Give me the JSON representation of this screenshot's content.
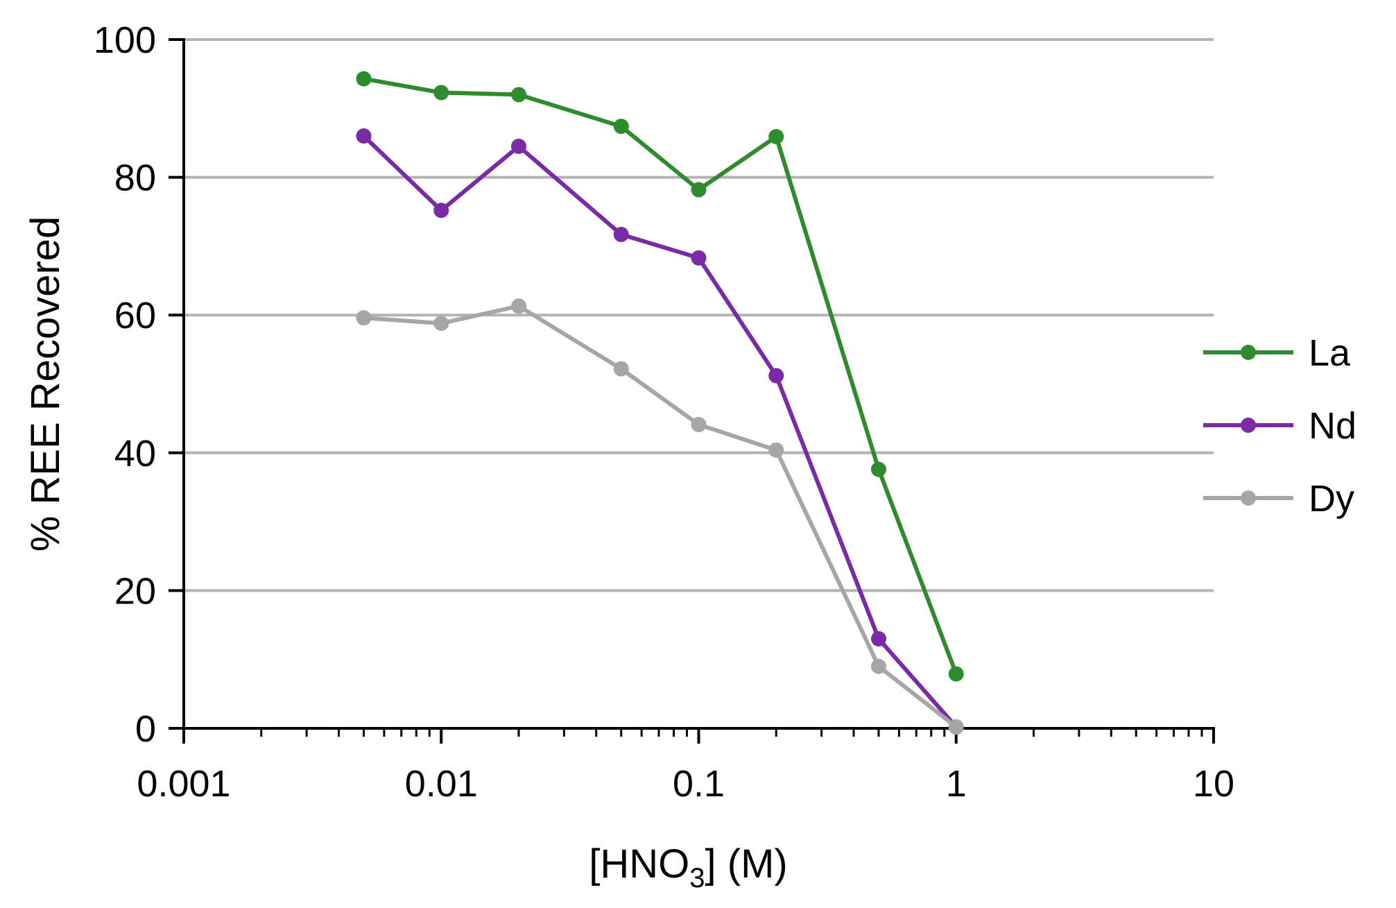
{
  "chart_data": {
    "type": "line",
    "title": "",
    "xlabel": "[HNO3] (M)",
    "xlabel_parts": {
      "prefix": "[HNO",
      "subscript": "3",
      "suffix": "] (M)"
    },
    "ylabel": "% REE Recovered",
    "x_scale": "log",
    "xlim": [
      0.001,
      10
    ],
    "ylim": [
      0,
      100
    ],
    "x_ticks": [
      {
        "value": 0.001,
        "label": "0.001"
      },
      {
        "value": 0.01,
        "label": "0.01"
      },
      {
        "value": 0.1,
        "label": "0.1"
      },
      {
        "value": 1,
        "label": "1"
      },
      {
        "value": 10,
        "label": "10"
      }
    ],
    "y_ticks": [
      {
        "value": 0,
        "label": "0"
      },
      {
        "value": 20,
        "label": "20"
      },
      {
        "value": 40,
        "label": "40"
      },
      {
        "value": 60,
        "label": "60"
      },
      {
        "value": 80,
        "label": "80"
      },
      {
        "value": 100,
        "label": "100"
      }
    ],
    "grid": "horizontal",
    "legend_position": "right",
    "x": [
      0.005,
      0.01,
      0.02,
      0.05,
      0.1,
      0.2,
      0.5,
      1
    ],
    "series": [
      {
        "name": "La",
        "color": "#2e8b2e",
        "values": [
          94.3,
          92.3,
          92.0,
          87.4,
          78.2,
          85.9,
          37.6,
          7.9
        ]
      },
      {
        "name": "Nd",
        "color": "#7b2aa6",
        "values": [
          86.0,
          75.2,
          84.5,
          71.7,
          68.3,
          51.2,
          13.0,
          0.2
        ]
      },
      {
        "name": "Dy",
        "color": "#a6a6a6",
        "values": [
          59.6,
          58.8,
          61.3,
          52.2,
          44.1,
          40.4,
          9.0,
          0.2
        ]
      }
    ]
  }
}
